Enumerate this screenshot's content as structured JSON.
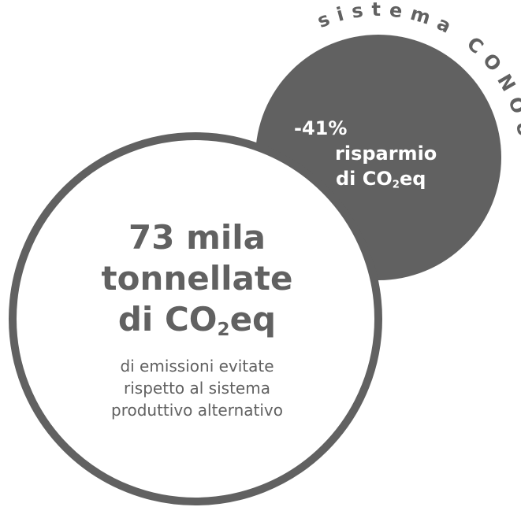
{
  "colors": {
    "dark_gray": "#616161",
    "white": "#ffffff"
  },
  "arc_title": "sistema CONOU",
  "small_circle": {
    "percent": "-41%",
    "line2": "risparmio",
    "line3_prefix": "di CO",
    "line3_sub": "2",
    "line3_suffix": "eq"
  },
  "big_circle": {
    "line1": "73 mila",
    "line2": "tonnellate",
    "line3_prefix": "di CO",
    "line3_sub": "2",
    "line3_suffix": "eq",
    "desc1": "di emissioni evitate",
    "desc2": "rispetto al sistema",
    "desc3": "produttivo alternativo"
  }
}
